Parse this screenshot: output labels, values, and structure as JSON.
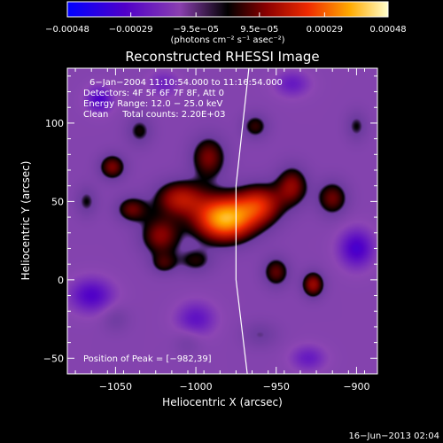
{
  "chart_data": {
    "type": "heatmap",
    "title": "Reconstructed RHESSI Image",
    "xlabel": "Heliocentric X (arcsec)",
    "ylabel": "Heliocentric Y (arcsec)",
    "xlim": [
      -1080,
      -887
    ],
    "ylim": [
      -60,
      135
    ],
    "x_ticks": [
      -1050,
      -1000,
      -950,
      -900
    ],
    "x_tick_labels": [
      "−1050",
      "−1000",
      "−950",
      "−900"
    ],
    "y_ticks": [
      -50,
      0,
      50,
      100
    ],
    "y_tick_labels": [
      "−50",
      "0",
      "50",
      "100"
    ],
    "grid": false,
    "colorbar": {
      "range": [
        -0.00048,
        0.00048
      ],
      "ticks": [
        -0.00048,
        -0.00029,
        -9.5e-05,
        9.5e-05,
        0.00029,
        0.00048
      ],
      "tick_labels": [
        "−0.00048",
        "−0.00029",
        "−9.5e−05",
        "9.5e−05",
        "0.00029",
        "0.00048"
      ],
      "units_label": "(photons cm⁻² s⁻¹ asec⁻²)"
    },
    "annotations": [
      "6−Jan−2004 11:10:54.000 to 11:16:54.000",
      "Detectors: 4F 5F 6F 7F 8F, Att 0",
      "Energy Range: 12.0 − 25.0 keV",
      "Clean     Total counts: 2.20E+03"
    ],
    "peak_label": "Position of Peak = [−982,39]",
    "peak": {
      "x": -982,
      "y": 39,
      "value": 0.00048
    },
    "limb_line": [
      [
        -967,
        135
      ],
      [
        -975,
        60
      ],
      [
        -975,
        0
      ],
      [
        -968,
        -60
      ]
    ],
    "sources": [
      {
        "x": -982,
        "y": 39,
        "sx": 13,
        "sy": 10,
        "amp": 0.00048
      },
      {
        "x": -960,
        "y": 48,
        "sx": 10,
        "sy": 9,
        "amp": 0.00026
      },
      {
        "x": -1010,
        "y": 52,
        "sx": 11,
        "sy": 8,
        "amp": 0.00024
      },
      {
        "x": -1022,
        "y": 28,
        "sx": 9,
        "sy": 9,
        "amp": 0.0002
      },
      {
        "x": -992,
        "y": 78,
        "sx": 8,
        "sy": 10,
        "amp": 0.00019
      },
      {
        "x": -940,
        "y": 60,
        "sx": 7,
        "sy": 9,
        "amp": 0.0002
      },
      {
        "x": -915,
        "y": 52,
        "sx": 7,
        "sy": 8,
        "amp": 0.00018
      },
      {
        "x": -1052,
        "y": 72,
        "sx": 6,
        "sy": 6,
        "amp": 0.00019
      },
      {
        "x": -1040,
        "y": 45,
        "sx": 7,
        "sy": 6,
        "amp": 0.00017
      },
      {
        "x": -1035,
        "y": 95,
        "sx": 6,
        "sy": 7,
        "amp": 0.00012
      },
      {
        "x": -950,
        "y": 5,
        "sx": 6,
        "sy": 7,
        "amp": 0.00017
      },
      {
        "x": -927,
        "y": -3,
        "sx": 5,
        "sy": 6,
        "amp": 0.00022
      },
      {
        "x": -963,
        "y": 98,
        "sx": 6,
        "sy": 6,
        "amp": 0.00014
      },
      {
        "x": -900,
        "y": 98,
        "sx": 5,
        "sy": 7,
        "amp": 0.00011
      },
      {
        "x": -1000,
        "y": 12,
        "sx": 8,
        "sy": 6,
        "amp": 0.00012
      },
      {
        "x": -1020,
        "y": 10,
        "sx": 6,
        "sy": 5,
        "amp": 0.00012
      },
      {
        "x": -1068,
        "y": 50,
        "sx": 5,
        "sy": 7,
        "amp": 0.00011
      },
      {
        "x": -960,
        "y": -35,
        "sx": 8,
        "sy": 6,
        "amp": 9e-05
      },
      {
        "x": -1050,
        "y": -25,
        "sx": 6,
        "sy": 6,
        "amp": 8e-05
      },
      {
        "x": -1005,
        "y": -40,
        "sx": 6,
        "sy": 6,
        "amp": 7e-05
      },
      {
        "x": -1060,
        "y": 115,
        "sx": 6,
        "sy": 6,
        "amp": -0.0002
      },
      {
        "x": -900,
        "y": 20,
        "sx": 8,
        "sy": 9,
        "amp": -0.00022
      },
      {
        "x": -1065,
        "y": -10,
        "sx": 10,
        "sy": 8,
        "amp": -0.0002
      },
      {
        "x": -1000,
        "y": -25,
        "sx": 9,
        "sy": 8,
        "amp": -0.00016
      },
      {
        "x": -930,
        "y": -50,
        "sx": 8,
        "sy": 6,
        "amp": -0.00014
      },
      {
        "x": -940,
        "y": 125,
        "sx": 8,
        "sy": 6,
        "amp": -0.00014
      },
      {
        "x": -1020,
        "y": 125,
        "sx": 7,
        "sy": 6,
        "amp": -0.00012
      }
    ]
  },
  "footer": {
    "timestamp": "16−Jun−2013 02:04"
  }
}
